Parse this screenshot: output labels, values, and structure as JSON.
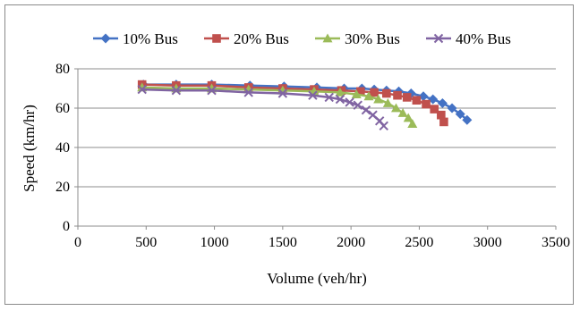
{
  "chart_data": {
    "type": "line",
    "title": "",
    "xlabel": "Volume (veh/hr)",
    "ylabel": "Speed (km/hr)",
    "xlim": [
      0,
      3500
    ],
    "ylim": [
      0,
      80
    ],
    "xticks": [
      0,
      500,
      1000,
      1500,
      2000,
      2500,
      3000,
      3500
    ],
    "yticks": [
      0,
      20,
      40,
      60,
      80
    ],
    "x_tick_labels": [
      "0",
      "500",
      "1000",
      "1500",
      "2000",
      "2500",
      "3000",
      "3500"
    ],
    "y_tick_labels": [
      "0",
      "20",
      "40",
      "60",
      "80"
    ],
    "grid": "horizontal",
    "legend_position": "top",
    "series": [
      {
        "name": "10% Bus",
        "color": "#4472c4",
        "marker": "diamond",
        "x": [
          480,
          720,
          980,
          1260,
          1510,
          1750,
          1950,
          2080,
          2170,
          2260,
          2350,
          2440,
          2530,
          2600,
          2670,
          2740,
          2800,
          2850
        ],
        "y": [
          72,
          72,
          72,
          71.5,
          71,
          70.5,
          70,
          70,
          69.5,
          69,
          68.5,
          67.5,
          66,
          64.5,
          62.5,
          60,
          57,
          54
        ]
      },
      {
        "name": "20% Bus",
        "color": "#c0504d",
        "marker": "square",
        "x": [
          470,
          720,
          980,
          1250,
          1500,
          1730,
          1930,
          2070,
          2170,
          2260,
          2340,
          2410,
          2480,
          2550,
          2610,
          2660,
          2680
        ],
        "y": [
          72,
          71.5,
          71.5,
          70.5,
          70,
          69.5,
          69,
          68.5,
          68,
          67.5,
          66.5,
          65.5,
          64,
          62,
          59.5,
          56.5,
          53
        ]
      },
      {
        "name": "30% Bus",
        "color": "#9bbb59",
        "marker": "triangle",
        "x": [
          470,
          720,
          980,
          1250,
          1500,
          1730,
          1920,
          2040,
          2130,
          2200,
          2270,
          2330,
          2380,
          2420,
          2450
        ],
        "y": [
          70.5,
          70,
          70,
          69.5,
          69,
          68.5,
          68,
          67,
          66,
          64.5,
          62.5,
          60,
          57.5,
          55,
          52
        ]
      },
      {
        "name": "40% Bus",
        "color": "#8064a2",
        "marker": "x",
        "x": [
          470,
          720,
          980,
          1250,
          1500,
          1720,
          1840,
          1920,
          1990,
          2050,
          2110,
          2160,
          2210,
          2240
        ],
        "y": [
          69.5,
          69,
          69,
          68,
          67.5,
          66.5,
          65.5,
          64.5,
          63,
          61.5,
          59,
          56.5,
          53.5,
          51
        ]
      }
    ]
  }
}
